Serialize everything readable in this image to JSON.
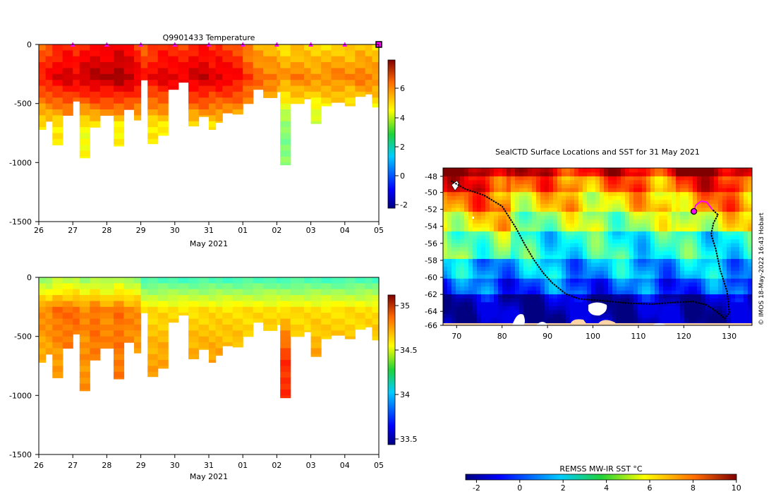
{
  "chart_data": [
    {
      "type": "heatmap",
      "title": "Q9901433  Temperature",
      "xlabel": "May 2021",
      "ylabel": "",
      "x_tick_labels": [
        "26",
        "27",
        "28",
        "29",
        "30",
        "31",
        "01",
        "02",
        "03",
        "04",
        "05"
      ],
      "y_tick_labels": [
        "0",
        "-500",
        "-1000",
        "-1500"
      ],
      "ylim": [
        -1500,
        0
      ],
      "colorbar_ticks": [
        "6",
        "4",
        "2",
        "0",
        "-2"
      ],
      "colorbar_range": [
        -2.5,
        8
      ],
      "surface_marker_days": [
        1,
        2,
        3,
        4,
        5,
        6,
        7,
        8,
        9
      ],
      "profiles": [
        {
          "day": 0.0,
          "depth": 720,
          "top": 5.6,
          "deep": 4.2
        },
        {
          "day": 0.2,
          "depth": 650,
          "top": 5.8,
          "deep": 4.3
        },
        {
          "day": 0.4,
          "depth": 850,
          "top": 6.1,
          "deep": 4.2
        },
        {
          "day": 0.7,
          "depth": 600,
          "top": 6.3,
          "deep": 4.4
        },
        {
          "day": 1.0,
          "depth": 480,
          "top": 6.0,
          "deep": 4.5
        },
        {
          "day": 1.2,
          "depth": 960,
          "top": 6.4,
          "deep": 4.0
        },
        {
          "day": 1.5,
          "depth": 700,
          "top": 6.6,
          "deep": 4.2
        },
        {
          "day": 1.8,
          "depth": 600,
          "top": 6.5,
          "deep": 4.3
        },
        {
          "day": 2.2,
          "depth": 860,
          "top": 6.8,
          "deep": 4.1
        },
        {
          "day": 2.5,
          "depth": 550,
          "top": 6.5,
          "deep": 4.4
        },
        {
          "day": 2.8,
          "depth": 640,
          "top": 6.1,
          "deep": 4.4
        },
        {
          "day": 3.0,
          "depth": 300,
          "top": 5.6,
          "deep": 4.6
        },
        {
          "day": 3.2,
          "depth": 840,
          "top": 5.9,
          "deep": 4.2
        },
        {
          "day": 3.5,
          "depth": 770,
          "top": 6.2,
          "deep": 4.2
        },
        {
          "day": 3.8,
          "depth": 380,
          "top": 6.1,
          "deep": 4.6
        },
        {
          "day": 4.1,
          "depth": 320,
          "top": 6.0,
          "deep": 4.7
        },
        {
          "day": 4.4,
          "depth": 690,
          "top": 6.3,
          "deep": 4.3
        },
        {
          "day": 4.7,
          "depth": 610,
          "top": 6.4,
          "deep": 4.4
        },
        {
          "day": 5.0,
          "depth": 720,
          "top": 6.1,
          "deep": 4.3
        },
        {
          "day": 5.2,
          "depth": 660,
          "top": 6.2,
          "deep": 4.3
        },
        {
          "day": 5.4,
          "depth": 580,
          "top": 6.0,
          "deep": 4.4
        },
        {
          "day": 5.7,
          "depth": 590,
          "top": 5.8,
          "deep": 4.4
        },
        {
          "day": 6.0,
          "depth": 500,
          "top": 5.2,
          "deep": 4.6
        },
        {
          "day": 6.3,
          "depth": 380,
          "top": 4.8,
          "deep": 4.4
        },
        {
          "day": 6.6,
          "depth": 450,
          "top": 4.6,
          "deep": 3.9
        },
        {
          "day": 7.0,
          "depth": 400,
          "top": 4.5,
          "deep": 3.6
        },
        {
          "day": 7.1,
          "depth": 1020,
          "top": 4.3,
          "deep": 2.8
        },
        {
          "day": 7.4,
          "depth": 500,
          "top": 4.5,
          "deep": 3.5
        },
        {
          "day": 7.8,
          "depth": 460,
          "top": 4.4,
          "deep": 3.6
        },
        {
          "day": 8.0,
          "depth": 670,
          "top": 4.3,
          "deep": 3.2
        },
        {
          "day": 8.3,
          "depth": 520,
          "top": 4.4,
          "deep": 3.4
        },
        {
          "day": 8.6,
          "depth": 490,
          "top": 4.5,
          "deep": 3.5
        },
        {
          "day": 9.0,
          "depth": 520,
          "top": 4.4,
          "deep": 3.4
        },
        {
          "day": 9.3,
          "depth": 440,
          "top": 4.6,
          "deep": 3.6
        },
        {
          "day": 9.6,
          "depth": 420,
          "top": 4.5,
          "deep": 3.6
        },
        {
          "day": 9.8,
          "depth": 530,
          "top": 4.4,
          "deep": 3.4
        }
      ]
    },
    {
      "type": "heatmap",
      "title": "",
      "xlabel": "May 2021",
      "ylabel": "",
      "x_tick_labels": [
        "26",
        "27",
        "28",
        "29",
        "30",
        "31",
        "01",
        "02",
        "03",
        "04",
        "05"
      ],
      "y_tick_labels": [
        "0",
        "-500",
        "-1000",
        "-1500"
      ],
      "ylim": [
        -1500,
        0
      ],
      "colorbar_ticks": [
        "35",
        "34.5",
        "34",
        "33.5"
      ],
      "colorbar_range": [
        33.4,
        35.15
      ],
      "profiles": [
        {
          "day": 0.0,
          "depth": 720,
          "top": 34.3,
          "deep": 34.62
        },
        {
          "day": 0.2,
          "depth": 650,
          "top": 34.3,
          "deep": 34.64
        },
        {
          "day": 0.4,
          "depth": 850,
          "top": 34.35,
          "deep": 34.66
        },
        {
          "day": 0.7,
          "depth": 600,
          "top": 34.35,
          "deep": 34.7
        },
        {
          "day": 1.0,
          "depth": 480,
          "top": 34.35,
          "deep": 34.72
        },
        {
          "day": 1.2,
          "depth": 960,
          "top": 34.3,
          "deep": 34.68
        },
        {
          "day": 1.5,
          "depth": 700,
          "top": 34.35,
          "deep": 34.72
        },
        {
          "day": 1.8,
          "depth": 600,
          "top": 34.3,
          "deep": 34.7
        },
        {
          "day": 2.2,
          "depth": 860,
          "top": 34.35,
          "deep": 34.72
        },
        {
          "day": 2.5,
          "depth": 550,
          "top": 34.3,
          "deep": 34.7
        },
        {
          "day": 2.8,
          "depth": 640,
          "top": 34.3,
          "deep": 34.66
        },
        {
          "day": 3.0,
          "depth": 300,
          "top": 34.15,
          "deep": 34.55
        },
        {
          "day": 3.2,
          "depth": 840,
          "top": 34.15,
          "deep": 34.65
        },
        {
          "day": 3.5,
          "depth": 770,
          "top": 34.15,
          "deep": 34.66
        },
        {
          "day": 3.8,
          "depth": 380,
          "top": 34.15,
          "deep": 34.6
        },
        {
          "day": 4.1,
          "depth": 320,
          "top": 34.15,
          "deep": 34.58
        },
        {
          "day": 4.4,
          "depth": 690,
          "top": 34.15,
          "deep": 34.66
        },
        {
          "day": 4.7,
          "depth": 610,
          "top": 34.15,
          "deep": 34.66
        },
        {
          "day": 5.0,
          "depth": 720,
          "top": 34.15,
          "deep": 34.66
        },
        {
          "day": 5.2,
          "depth": 660,
          "top": 34.15,
          "deep": 34.66
        },
        {
          "day": 5.4,
          "depth": 580,
          "top": 34.15,
          "deep": 34.64
        },
        {
          "day": 5.7,
          "depth": 590,
          "top": 34.15,
          "deep": 34.64
        },
        {
          "day": 6.0,
          "depth": 500,
          "top": 34.15,
          "deep": 34.6
        },
        {
          "day": 6.3,
          "depth": 380,
          "top": 34.15,
          "deep": 34.58
        },
        {
          "day": 6.6,
          "depth": 450,
          "top": 34.15,
          "deep": 34.6
        },
        {
          "day": 7.0,
          "depth": 400,
          "top": 34.15,
          "deep": 34.6
        },
        {
          "day": 7.1,
          "depth": 1020,
          "top": 34.15,
          "deep": 34.85
        },
        {
          "day": 7.4,
          "depth": 500,
          "top": 34.15,
          "deep": 34.62
        },
        {
          "day": 7.8,
          "depth": 460,
          "top": 34.15,
          "deep": 34.6
        },
        {
          "day": 8.0,
          "depth": 670,
          "top": 34.15,
          "deep": 34.66
        },
        {
          "day": 8.3,
          "depth": 520,
          "top": 34.15,
          "deep": 34.62
        },
        {
          "day": 8.6,
          "depth": 490,
          "top": 34.15,
          "deep": 34.62
        },
        {
          "day": 9.0,
          "depth": 520,
          "top": 34.15,
          "deep": 34.62
        },
        {
          "day": 9.3,
          "depth": 440,
          "top": 34.15,
          "deep": 34.6
        },
        {
          "day": 9.6,
          "depth": 420,
          "top": 34.15,
          "deep": 34.6
        },
        {
          "day": 9.8,
          "depth": 530,
          "top": 34.15,
          "deep": 34.62
        }
      ]
    },
    {
      "type": "heatmap",
      "title": "SealCTD Surface Locations and SST for 31 May 2021",
      "xlabel": "",
      "ylabel": "",
      "x_tick_labels": [
        "70",
        "80",
        "90",
        "100",
        "110",
        "120",
        "130"
      ],
      "y_tick_labels": [
        "-48",
        "-50",
        "-52",
        "-54",
        "-56",
        "-58",
        "-60",
        "-62",
        "-64",
        "-66"
      ],
      "xlim": [
        67,
        135
      ],
      "ylim": [
        -66,
        -47.5
      ],
      "colorbar_label": "REMSS MW-IR SST °C",
      "colorbar_ticks": [
        "-2",
        "0",
        "2",
        "4",
        "6",
        "8",
        "10"
      ],
      "colorbar_range": [
        -2.5,
        10
      ],
      "watermark": "© IMOS 18-May-2022 16:43 Hobart",
      "track": [
        [
          68.7,
          -49.0
        ],
        [
          72,
          -50.0
        ],
        [
          76,
          -50.7
        ],
        [
          80,
          -52.0
        ],
        [
          83,
          -54.5
        ],
        [
          85,
          -56.5
        ],
        [
          87,
          -58.3
        ],
        [
          89,
          -59.8
        ],
        [
          91,
          -61.0
        ],
        [
          94,
          -62.3
        ],
        [
          97,
          -62.9
        ],
        [
          102,
          -63.1
        ],
        [
          108,
          -63.4
        ],
        [
          113,
          -63.5
        ],
        [
          118,
          -63.3
        ],
        [
          122,
          -63.2
        ],
        [
          125,
          -63.6
        ],
        [
          127,
          -64.3
        ],
        [
          129,
          -65.2
        ],
        [
          130,
          -64.5
        ],
        [
          129.5,
          -62.0
        ],
        [
          128,
          -59.5
        ],
        [
          127,
          -57.0
        ],
        [
          126,
          -55.3
        ],
        [
          126.5,
          -54.0
        ],
        [
          127.5,
          -53.0
        ],
        [
          126.3,
          -52.4
        ]
      ],
      "recent_track": [
        [
          126.3,
          -52.4
        ],
        [
          125,
          -51.5
        ],
        [
          123.8,
          -51.4
        ],
        [
          122.6,
          -51.9
        ],
        [
          122.2,
          -52.6
        ]
      ],
      "current_position": [
        122.2,
        -52.6
      ],
      "sst_regions": [
        {
          "lat": [
            -66,
            -62.5
          ],
          "sst": -1.8
        },
        {
          "lat": [
            -62.5,
            -60.5
          ],
          "sst": 0.0
        },
        {
          "lat": [
            -60.5,
            -58
          ],
          "sst": 1.2
        },
        {
          "lat": [
            -58,
            -55
          ],
          "sst": 2.5
        },
        {
          "lat": [
            -55,
            -52.5
          ],
          "sst": 4.2
        },
        {
          "lat": [
            -52.5,
            -50.5
          ],
          "sst": 5.6
        },
        {
          "lat": [
            -50.5,
            -48.5
          ],
          "sst": 7.0
        },
        {
          "lat": [
            -48.5,
            -47.5
          ],
          "sst": 8.6
        }
      ]
    }
  ]
}
